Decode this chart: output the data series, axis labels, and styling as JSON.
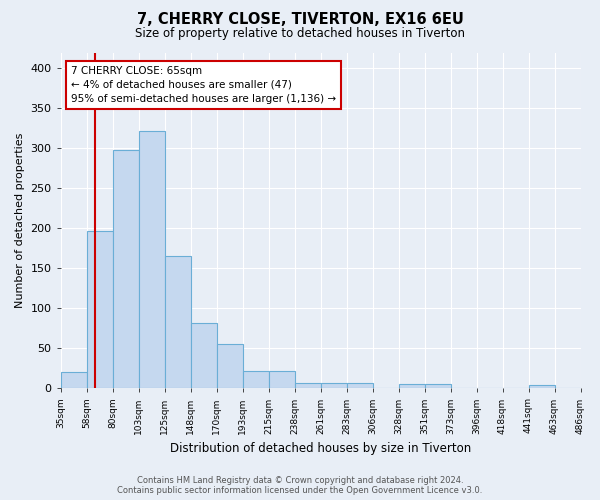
{
  "title": "7, CHERRY CLOSE, TIVERTON, EX16 6EU",
  "subtitle": "Size of property relative to detached houses in Tiverton",
  "xlabel": "Distribution of detached houses by size in Tiverton",
  "ylabel": "Number of detached properties",
  "footer_line1": "Contains HM Land Registry data © Crown copyright and database right 2024.",
  "footer_line2": "Contains public sector information licensed under the Open Government Licence v3.0.",
  "bar_values": [
    20,
    197,
    298,
    322,
    165,
    82,
    55,
    21,
    22,
    7,
    6,
    6,
    0,
    5,
    5,
    0,
    0,
    0,
    4,
    0
  ],
  "bin_labels": [
    "35sqm",
    "58sqm",
    "80sqm",
    "103sqm",
    "125sqm",
    "148sqm",
    "170sqm",
    "193sqm",
    "215sqm",
    "238sqm",
    "261sqm",
    "283sqm",
    "306sqm",
    "328sqm",
    "351sqm",
    "373sqm",
    "396sqm",
    "418sqm",
    "441sqm",
    "463sqm",
    "486sqm"
  ],
  "bar_color": "#c5d8ef",
  "bar_edge_color": "#6aaed6",
  "bg_color": "#e8eef6",
  "grid_color": "#ffffff",
  "annotation_text_line1": "7 CHERRY CLOSE: 65sqm",
  "annotation_text_line2": "← 4% of detached houses are smaller (47)",
  "annotation_text_line3": "95% of semi-detached houses are larger (1,136) →",
  "annotation_box_color": "#ffffff",
  "annotation_box_edge": "#cc0000",
  "vline_color": "#cc0000",
  "vline_x": 1.318,
  "ylim": [
    0,
    420
  ],
  "yticks": [
    0,
    50,
    100,
    150,
    200,
    250,
    300,
    350,
    400
  ]
}
